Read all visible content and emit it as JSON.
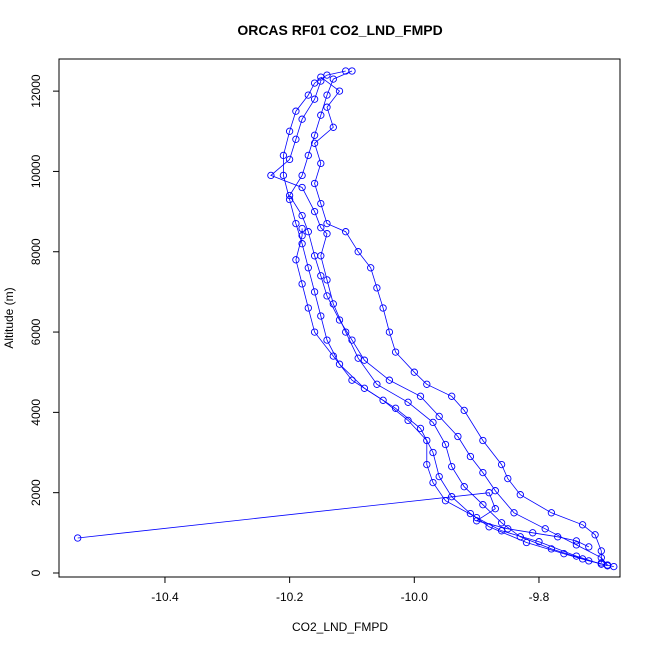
{
  "chart_data": {
    "type": "line",
    "title": "ORCAS RF01 CO2_LND_FMPD",
    "xlabel": "CO2_LND_FMPD",
    "ylabel": "Altitude (m)",
    "xlim": [
      -10.57,
      -9.67
    ],
    "ylim": [
      -100,
      12800
    ],
    "xticks": [
      -10.4,
      -10.2,
      -10.0,
      -9.8
    ],
    "xtick_labels": [
      "-10.4",
      "-10.2",
      "-10.0",
      "-9.8"
    ],
    "yticks": [
      0,
      2000,
      4000,
      6000,
      8000,
      10000,
      12000
    ],
    "ytick_labels": [
      "0",
      "2000",
      "4000",
      "6000",
      "8000",
      "10000",
      "12000"
    ],
    "grid": false,
    "color": "#0000ff",
    "series": [
      {
        "points": [
          [
            -9.68,
            160
          ],
          [
            -9.72,
            300
          ],
          [
            -9.76,
            480
          ],
          [
            -9.82,
            760
          ],
          [
            -9.88,
            1150
          ],
          [
            -9.91,
            1480
          ],
          [
            -9.94,
            1900
          ],
          [
            -9.96,
            2400
          ],
          [
            -9.97,
            3000
          ],
          [
            -9.99,
            3600
          ],
          [
            -10.03,
            4100
          ],
          [
            -10.08,
            4600
          ],
          [
            -10.12,
            5200
          ],
          [
            -10.14,
            5800
          ],
          [
            -10.15,
            6400
          ],
          [
            -10.16,
            7000
          ],
          [
            -10.17,
            7600
          ],
          [
            -10.18,
            8200
          ],
          [
            -10.19,
            8700
          ],
          [
            -10.2,
            9300
          ],
          [
            -10.21,
            9900
          ],
          [
            -10.21,
            10400
          ],
          [
            -10.2,
            11000
          ],
          [
            -10.19,
            11500
          ],
          [
            -10.17,
            11900
          ],
          [
            -10.16,
            12200
          ],
          [
            -10.14,
            12400
          ],
          [
            -10.11,
            12500
          ]
        ]
      },
      {
        "points": [
          [
            -10.1,
            12500
          ],
          [
            -10.13,
            12300
          ],
          [
            -10.14,
            11900
          ],
          [
            -10.15,
            11400
          ],
          [
            -10.16,
            10900
          ],
          [
            -10.17,
            10400
          ],
          [
            -10.18,
            9900
          ],
          [
            -10.2,
            9400
          ],
          [
            -10.18,
            8900
          ],
          [
            -10.17,
            8500
          ],
          [
            -10.16,
            7900
          ],
          [
            -10.15,
            7400
          ],
          [
            -10.14,
            6900
          ],
          [
            -10.12,
            6300
          ],
          [
            -10.1,
            5800
          ],
          [
            -10.08,
            5300
          ],
          [
            -10.04,
            4800
          ],
          [
            -9.99,
            4400
          ],
          [
            -9.96,
            3900
          ],
          [
            -9.93,
            3400
          ],
          [
            -9.91,
            2900
          ],
          [
            -9.89,
            2500
          ],
          [
            -9.87,
            2050
          ],
          [
            -9.84,
            1500
          ],
          [
            -9.79,
            1100
          ],
          [
            -9.74,
            700
          ],
          [
            -9.7,
            380
          ],
          [
            -9.69,
            200
          ]
        ]
      },
      {
        "points": [
          [
            -9.69,
            180
          ],
          [
            -9.73,
            350
          ],
          [
            -9.78,
            600
          ],
          [
            -9.83,
            900
          ],
          [
            -9.86,
            1250
          ],
          [
            -9.89,
            1700
          ],
          [
            -9.92,
            2150
          ],
          [
            -9.94,
            2650
          ],
          [
            -9.95,
            3200
          ],
          [
            -9.97,
            3750
          ],
          [
            -10.01,
            4250
          ],
          [
            -10.06,
            4700
          ],
          [
            -10.09,
            5350
          ],
          [
            -10.11,
            6000
          ],
          [
            -10.13,
            6700
          ],
          [
            -10.14,
            7300
          ],
          [
            -10.15,
            7900
          ],
          [
            -10.14,
            8450
          ],
          [
            -10.15,
            8600
          ],
          [
            -10.16,
            9000
          ],
          [
            -10.18,
            9600
          ],
          [
            -10.23,
            9900
          ],
          [
            -10.2,
            10300
          ],
          [
            -10.19,
            10800
          ],
          [
            -10.18,
            11300
          ],
          [
            -10.16,
            11800
          ],
          [
            -10.15,
            12250
          ]
        ]
      },
      {
        "points": [
          [
            -10.15,
            12350
          ],
          [
            -10.12,
            12000
          ],
          [
            -10.14,
            11600
          ],
          [
            -10.13,
            11100
          ],
          [
            -10.16,
            10700
          ],
          [
            -10.15,
            10200
          ],
          [
            -10.16,
            9700
          ],
          [
            -10.15,
            9200
          ],
          [
            -10.14,
            8700
          ],
          [
            -10.11,
            8500
          ],
          [
            -10.09,
            8000
          ],
          [
            -10.07,
            7600
          ],
          [
            -10.06,
            7100
          ],
          [
            -10.05,
            6600
          ],
          [
            -10.04,
            6000
          ],
          [
            -10.03,
            5500
          ],
          [
            -10.0,
            5000
          ],
          [
            -9.98,
            4700
          ],
          [
            -9.94,
            4400
          ],
          [
            -9.92,
            4050
          ],
          [
            -9.89,
            3300
          ],
          [
            -9.86,
            2700
          ],
          [
            -9.85,
            2350
          ],
          [
            -9.83,
            1950
          ],
          [
            -9.78,
            1500
          ],
          [
            -9.73,
            1200
          ],
          [
            -9.71,
            950
          ],
          [
            -9.7,
            550
          ],
          [
            -9.7,
            250
          ]
        ]
      },
      {
        "points": [
          [
            -9.7,
            220
          ],
          [
            -9.74,
            420
          ],
          [
            -9.8,
            780
          ],
          [
            -9.86,
            1050
          ],
          [
            -9.9,
            1380
          ],
          [
            -9.95,
            1800
          ],
          [
            -9.97,
            2250
          ],
          [
            -9.98,
            2700
          ],
          [
            -9.98,
            3300
          ],
          [
            -10.01,
            3800
          ],
          [
            -10.05,
            4300
          ],
          [
            -10.1,
            4800
          ],
          [
            -10.13,
            5400
          ],
          [
            -10.16,
            6000
          ],
          [
            -10.17,
            6600
          ],
          [
            -10.18,
            7200
          ],
          [
            -10.19,
            7800
          ],
          [
            -10.18,
            8400
          ],
          [
            -10.18,
            8580
          ]
        ]
      },
      {
        "points": [
          [
            -10.54,
            870
          ],
          [
            -9.88,
            2000
          ],
          [
            -9.87,
            1600
          ],
          [
            -9.9,
            1300
          ],
          [
            -9.85,
            1100
          ],
          [
            -9.81,
            1000
          ],
          [
            -9.77,
            900
          ],
          [
            -9.74,
            800
          ],
          [
            -9.72,
            650
          ]
        ]
      }
    ]
  }
}
